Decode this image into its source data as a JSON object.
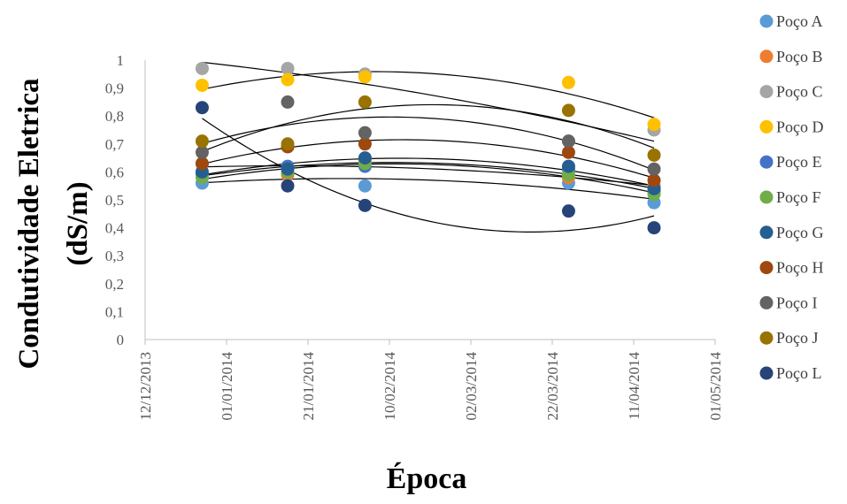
{
  "chart_data": {
    "type": "scatter",
    "xlabel": "Época",
    "ylabel_line1": "Condutividade  Eletrica",
    "ylabel_line2": "(dS/m)",
    "xlim": [
      "2013-12-12",
      "2014-05-01"
    ],
    "ylim": [
      0,
      1
    ],
    "x_ticks": [
      "2013-12-12",
      "2014-01-01",
      "2014-01-21",
      "2014-02-10",
      "2014-03-02",
      "2014-03-22",
      "2014-04-11",
      "2014-05-01"
    ],
    "x_tick_labels": [
      "12/12/2013",
      "01/01/2014",
      "21/01/2014",
      "10/02/2014",
      "02/03/2014",
      "22/03/2014",
      "11/04/2014",
      "01/05/2014"
    ],
    "y_ticks": [
      0,
      0.1,
      0.2,
      0.3,
      0.4,
      0.5,
      0.6,
      0.7,
      0.8,
      0.9,
      1
    ],
    "y_tick_labels": [
      "0",
      "0,1",
      "0,2",
      "0,3",
      "0,4",
      "0,5",
      "0,6",
      "0,7",
      "0,8",
      "0,9",
      "1"
    ],
    "grid": false,
    "legend_position": "right",
    "trendline": "polynomial-2",
    "trendline_color": "#000000",
    "x": [
      "2013-12-26",
      "2014-01-16",
      "2014-02-04",
      "2014-03-26",
      "2014-04-16"
    ],
    "series": [
      {
        "name": "Poço A",
        "color": "#5B9BD5",
        "values": [
          0.56,
          0.59,
          0.55,
          0.56,
          0.49
        ]
      },
      {
        "name": "Poço B",
        "color": "#ED7D31",
        "values": [
          0.63,
          0.59,
          0.64,
          0.58,
          0.55
        ]
      },
      {
        "name": "Poço C",
        "color": "#A5A5A5",
        "values": [
          0.97,
          0.97,
          0.95,
          0.71,
          0.75
        ]
      },
      {
        "name": "Poço D",
        "color": "#FFC000",
        "values": [
          0.91,
          0.93,
          0.94,
          0.92,
          0.77
        ]
      },
      {
        "name": "Poço E",
        "color": "#4472C4",
        "values": [
          0.59,
          0.62,
          0.62,
          0.61,
          0.53
        ]
      },
      {
        "name": "Poço F",
        "color": "#70AD47",
        "values": [
          0.58,
          0.6,
          0.63,
          0.59,
          0.52
        ]
      },
      {
        "name": "Poço G",
        "color": "#255E91",
        "values": [
          0.6,
          0.61,
          0.65,
          0.62,
          0.54
        ]
      },
      {
        "name": "Poço H",
        "color": "#9E480E",
        "values": [
          0.63,
          0.69,
          0.7,
          0.67,
          0.57
        ]
      },
      {
        "name": "Poço I",
        "color": "#636363",
        "values": [
          0.67,
          0.85,
          0.74,
          0.71,
          0.61
        ]
      },
      {
        "name": "Poço J",
        "color": "#997300",
        "values": [
          0.71,
          0.7,
          0.85,
          0.82,
          0.66
        ]
      },
      {
        "name": "Poço L",
        "color": "#264478",
        "values": [
          0.83,
          0.55,
          0.48,
          0.46,
          0.4
        ]
      }
    ]
  }
}
